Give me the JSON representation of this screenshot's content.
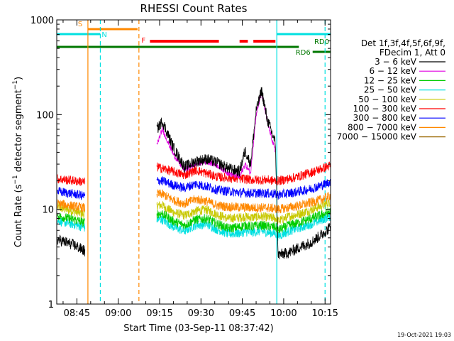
{
  "chart_data": {
    "type": "line",
    "title": "RHESSI Count Rates",
    "xlabel": "Start Time (03-Sep-11 08:37:42)",
    "ylabel": "Count Rate (s-1 detector segment-1)",
    "ylabel_parts": {
      "main": "Count Rate (s",
      "sup1": "−1",
      "mid": " detector segment",
      "sup2": "−1",
      "end": ")"
    },
    "y_scale": "log",
    "ylim": [
      1,
      1000
    ],
    "xlim": [
      "08:37:42",
      "10:17:00"
    ],
    "x_ticks": [
      "08:45",
      "09:00",
      "09:15",
      "09:30",
      "09:45",
      "10:00",
      "10:15"
    ],
    "y_ticks": [
      "1",
      "10",
      "100",
      "1000"
    ],
    "footer_stamp": "19-Oct-2021 19:03",
    "legend": {
      "placement": "right",
      "header": [
        "Det 1f,3f,4f,5f,6f,9f,",
        "FDecim 1, Att 0"
      ],
      "entries": [
        {
          "label": "3 − 6 keV",
          "color": "#000000"
        },
        {
          "label": "6 − 12 keV",
          "color": "#e000e0"
        },
        {
          "label": "12 − 25 keV",
          "color": "#00cc00"
        },
        {
          "label": "25 − 50 keV",
          "color": "#00e0e0"
        },
        {
          "label": "50 − 100 keV",
          "color": "#c8c800"
        },
        {
          "label": "100 − 300 keV",
          "color": "#ff0000"
        },
        {
          "label": "300 − 800 keV",
          "color": "#0000ff"
        },
        {
          "label": "800 − 7000 keV",
          "color": "#ff8800"
        },
        {
          "label": "7000 − 15000 keV",
          "color": "#996600"
        }
      ]
    },
    "flag_bars": [
      {
        "label": "S",
        "color": "#ff8800",
        "spans": [
          [
            "08:49:00",
            "09:07:00"
          ]
        ]
      },
      {
        "label": "N",
        "color": "#00e0e0",
        "spans": [
          [
            "08:37:42",
            "08:53:30"
          ],
          [
            "09:57:30",
            "10:17:00"
          ]
        ]
      },
      {
        "label": "F",
        "color": "#ff0000",
        "spans": [
          [
            "09:11:30",
            "09:36:30"
          ],
          [
            "09:44:00",
            "09:47:00"
          ],
          [
            "09:49:00",
            "09:57:00"
          ]
        ]
      },
      {
        "label": "RD0",
        "color": "#007700",
        "spans": [
          [
            "08:37:42",
            "10:05:30"
          ]
        ]
      },
      {
        "label": "RD6",
        "color": "#007700",
        "spans": [
          [
            "10:10:30",
            "10:17:00"
          ]
        ]
      }
    ],
    "vertical_markers": [
      {
        "time": "08:49:00",
        "color": "#ff8800",
        "style": "solid"
      },
      {
        "time": "08:53:30",
        "color": "#00e0e0",
        "style": "dashed"
      },
      {
        "time": "09:07:30",
        "color": "#ff8800",
        "style": "dashed"
      },
      {
        "time": "09:57:30",
        "color": "#00e0e0",
        "style": "solid"
      },
      {
        "time": "10:15:00",
        "color": "#00e0e0",
        "style": "dashed"
      }
    ],
    "x": [
      "08:38",
      "08:44",
      "08:48",
      "09:10",
      "09:14",
      "09:16",
      "09:20",
      "09:24",
      "09:28",
      "09:32",
      "09:36",
      "09:40",
      "09:44",
      "09:46",
      "09:48",
      "09:50",
      "09:52",
      "09:54",
      "09:57",
      "09:58",
      "10:02",
      "10:06",
      "10:10",
      "10:14",
      "10:17"
    ],
    "series": [
      {
        "name": "3 − 6 keV",
        "color": "#000000",
        "values": [
          4.8,
          4.2,
          3.6,
          null,
          70,
          85,
          45,
          28,
          32,
          34,
          31,
          27,
          25,
          42,
          30,
          110,
          180,
          90,
          50,
          3.3,
          3.5,
          4.0,
          4.5,
          5.5,
          6.5
        ]
      },
      {
        "name": "6 − 12 keV",
        "color": "#e000e0",
        "values": [
          null,
          null,
          null,
          null,
          48,
          70,
          38,
          26,
          30,
          32,
          29,
          24,
          22,
          30,
          24,
          100,
          170,
          85,
          40,
          null,
          null,
          null,
          null,
          null,
          null
        ]
      },
      {
        "name": "12 − 25 keV",
        "color": "#00cc00",
        "values": [
          8.5,
          7.8,
          7.2,
          null,
          9.0,
          9.0,
          7.5,
          6.8,
          7.8,
          8.0,
          7.0,
          6.3,
          6.5,
          6.8,
          6.6,
          6.7,
          6.8,
          6.6,
          6.5,
          6.0,
          6.8,
          7.3,
          8.0,
          8.8,
          9.5
        ]
      },
      {
        "name": "25 − 50 keV",
        "color": "#00e0e0",
        "values": [
          7.6,
          6.9,
          6.4,
          null,
          7.8,
          7.8,
          6.5,
          5.9,
          6.8,
          7.0,
          6.1,
          5.5,
          5.6,
          5.8,
          5.7,
          5.8,
          5.9,
          5.7,
          5.6,
          5.2,
          5.9,
          6.4,
          7.0,
          7.8,
          8.5
        ]
      },
      {
        "name": "50 − 100 keV",
        "color": "#c8c800",
        "values": [
          10.5,
          9.5,
          8.8,
          null,
          11.0,
          11.0,
          9.3,
          8.6,
          9.6,
          9.9,
          8.8,
          8.0,
          8.2,
          8.4,
          8.2,
          8.3,
          8.4,
          8.2,
          8.1,
          7.5,
          8.4,
          9.0,
          9.9,
          11.0,
          12.0
        ]
      },
      {
        "name": "100 − 300 keV",
        "color": "#ff0000",
        "values": [
          21,
          20,
          19.5,
          null,
          28,
          27,
          25,
          23,
          26,
          24,
          22,
          21.5,
          21,
          21,
          20.5,
          20.5,
          20.5,
          20.5,
          20,
          20,
          21,
          22.5,
          24.5,
          27,
          29
        ]
      },
      {
        "name": "300 − 800 keV",
        "color": "#0000ff",
        "values": [
          15.5,
          14.5,
          13.8,
          null,
          20,
          20,
          18,
          16.8,
          18.5,
          17.5,
          16,
          15.5,
          15,
          15,
          14.8,
          14.8,
          14.8,
          14.8,
          14.5,
          14.2,
          14.8,
          15.5,
          16.5,
          18,
          19.5
        ]
      },
      {
        "name": "800 − 7000 keV",
        "color": "#ff8800",
        "values": [
          11.5,
          10.8,
          10.3,
          null,
          14.5,
          14.5,
          12.5,
          11.5,
          12.8,
          12.2,
          11,
          10.6,
          10.5,
          10.5,
          10.4,
          10.4,
          10.4,
          10.4,
          10.2,
          10,
          10.5,
          11,
          11.8,
          12.8,
          14
        ]
      },
      {
        "name": "7000 − 15000 keV",
        "color": "#996600",
        "values": [
          null,
          null,
          null,
          null,
          null,
          null,
          null,
          null,
          null,
          null,
          null,
          null,
          null,
          null,
          null,
          null,
          null,
          null,
          null,
          null,
          null,
          null,
          null,
          null,
          null
        ]
      }
    ]
  }
}
